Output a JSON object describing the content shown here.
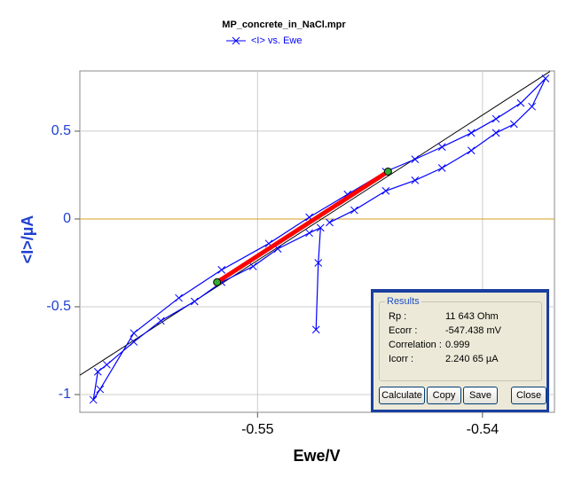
{
  "chart_data": {
    "type": "line",
    "title": "MP_concrete_in_NaCl.mpr",
    "xlabel": "Ewe/V",
    "ylabel": "<I>/µA",
    "xlim": [
      -0.5579,
      -0.5368
    ],
    "ylim": [
      -1.101,
      0.843
    ],
    "xticks": [
      -0.55,
      -0.54
    ],
    "yticks": [
      0.5,
      0,
      -0.5,
      -1
    ],
    "grid": true,
    "series": [
      {
        "name": "<I> vs. Ewe",
        "color": "#0000ff",
        "x": [
          -0.5474,
          -0.5473,
          -0.5472,
          -0.5477,
          -0.5491,
          -0.5502,
          -0.5516,
          -0.5528,
          -0.5543,
          -0.5555,
          -0.5567,
          -0.5571,
          -0.5573,
          -0.557,
          -0.5555,
          -0.5535,
          -0.5516,
          -0.5495,
          -0.5477,
          -0.546,
          -0.5443,
          -0.543,
          -0.5418,
          -0.5405,
          -0.5394,
          -0.5383,
          -0.5372,
          -0.5378,
          -0.5386,
          -0.5394,
          -0.5405,
          -0.5418,
          -0.543,
          -0.5443,
          -0.5457,
          -0.5468
        ],
        "values": [
          -0.63,
          -0.25,
          -0.05,
          -0.08,
          -0.17,
          -0.27,
          -0.36,
          -0.47,
          -0.58,
          -0.7,
          -0.83,
          -0.87,
          -1.03,
          -0.97,
          -0.65,
          -0.45,
          -0.29,
          -0.14,
          0.01,
          0.14,
          0.27,
          0.34,
          0.41,
          0.49,
          0.57,
          0.66,
          0.8,
          0.64,
          0.54,
          0.49,
          0.39,
          0.29,
          0.22,
          0.16,
          0.05,
          -0.02
        ]
      }
    ],
    "fit": {
      "color": "#ff0000",
      "point_color": "#33aa33",
      "x": [
        -0.5518,
        -0.5442
      ],
      "values": [
        -0.36,
        0.27
      ]
    },
    "tangent": {
      "color": "#000000",
      "x": [
        -0.5579,
        -0.537
      ],
      "values": [
        -0.89,
        0.84
      ]
    }
  },
  "results": {
    "title": "Results",
    "rows": [
      [
        "Rp :",
        "11 643 Ohm"
      ],
      [
        "Ecorr :",
        "-547.438 mV"
      ],
      [
        "Correlation :",
        "0.999"
      ],
      [
        "Icorr :",
        "2.240 65 µA"
      ]
    ],
    "buttons": [
      "Calculate",
      "Copy",
      "Save",
      "Close"
    ]
  }
}
